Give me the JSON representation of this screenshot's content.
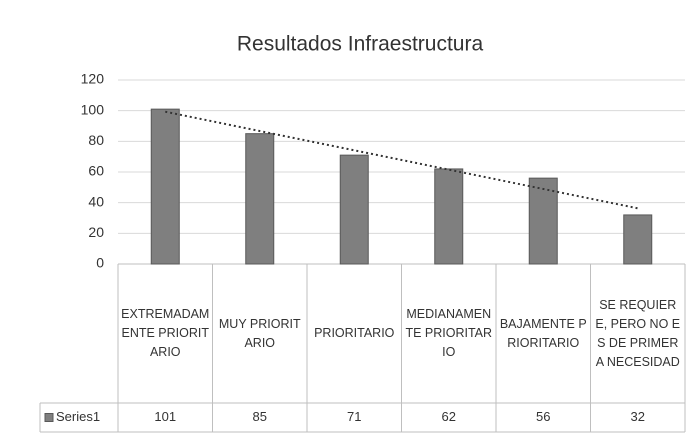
{
  "chart_data": {
    "type": "bar",
    "title": "Resultados Infraestructura",
    "categories": [
      "EXTREMADAMENTE PRIORITARIO",
      "MUY PRIORITARIO",
      "PRIORITARIO",
      "MEDIANAMENTE PRIORITARIO",
      "BAJAMENTE PRIORITARIO",
      "SE REQUIERE, PERO NO ES DE PRIMERA NECESIDAD"
    ],
    "series": [
      {
        "name": "Series1",
        "color": "#7f7f7f",
        "values": [
          101,
          85,
          71,
          62,
          56,
          32
        ]
      }
    ],
    "ylim": [
      0,
      120
    ],
    "yticks": [
      0,
      20,
      40,
      60,
      80,
      100,
      120
    ],
    "grid": true,
    "trendline": "linear",
    "data_table": true
  }
}
